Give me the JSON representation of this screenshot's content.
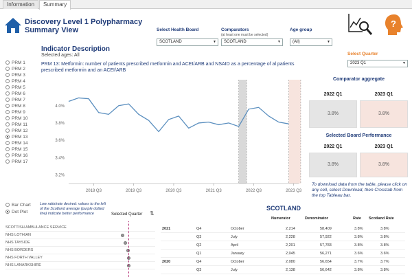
{
  "tabs": [
    {
      "label": "Information",
      "active": false
    },
    {
      "label": "Summary",
      "active": true
    }
  ],
  "header": {
    "title_line1": "Discovery Level 1 Polypharmacy",
    "title_line2": "Summary View",
    "icons": {
      "home": "home-icon",
      "chart_search": "chart-search-icon",
      "help": "help-head-icon"
    }
  },
  "filters": {
    "health_board": {
      "label": "Select Health Board",
      "value": "SCOTLAND"
    },
    "comparators": {
      "label": "Comparators",
      "sublabel": "(at least one must be selected)",
      "value": "SCOTLAND"
    },
    "age_group": {
      "label": "Age group",
      "value": "(All)"
    },
    "quarter": {
      "label": "Select Quarter",
      "value": "2023 Q1"
    }
  },
  "indicator": {
    "heading": "Indicator Description",
    "sub": "Selected ages: All",
    "description": "PRM 13: Metformin: number of patients prescribed metformin and ACEI/ARB and NSAID as a percentage of al patients prescribed metformin and an ACEI/ARB"
  },
  "prm_list": [
    "PRM 1",
    "PRM 2",
    "PRM 3",
    "PRM 4",
    "PRM 5",
    "PRM 6",
    "PRM 7",
    "PRM 8",
    "PRM 9",
    "PRM 10",
    "PRM 11",
    "PRM 12",
    "PRM 13",
    "PRM 14",
    "PRM 15",
    "PRM 16",
    "PRM 17"
  ],
  "prm_selected": 12,
  "chart_data": {
    "type": "line",
    "x_ticks": [
      "2018 Q3",
      "2019 Q3",
      "2020 Q3",
      "2021 Q3",
      "2022 Q3",
      "2023 Q3"
    ],
    "yticks": [
      "4.0%",
      "3.8%",
      "3.6%",
      "3.4%",
      "3.2%"
    ],
    "ylim": [
      3.1,
      4.3
    ],
    "series": [
      {
        "values": [
          4.05,
          4.09,
          4.08,
          3.92,
          3.9,
          4.0,
          4.02,
          3.9,
          3.83,
          3.7,
          3.84,
          3.88,
          3.74,
          3.8,
          3.81,
          3.78,
          3.8,
          3.76,
          3.96,
          3.98,
          3.88,
          3.81,
          3.79
        ]
      }
    ],
    "highlight_bands": [
      {
        "from_index": 17,
        "to_index": 17.8,
        "color": "#d9d9d9"
      },
      {
        "from_index": 22,
        "to_index": 23.2,
        "color": "#f7e4de"
      }
    ]
  },
  "comparator_aggregate": {
    "heading": "Comparator aggregate",
    "cols": [
      "2022 Q1",
      "2023 Q1"
    ],
    "values": [
      "3.8%",
      "3.8%"
    ]
  },
  "board_performance": {
    "heading": "Selected Board Performance",
    "cols": [
      "2022 Q1",
      "2023 Q1"
    ],
    "values": [
      "3.8%",
      "3.8%"
    ]
  },
  "download_note": "To download data from the table, please click on any cell, select Download, then Crosstab from the top Tableau bar.",
  "plot_toggle": {
    "options": [
      "Bar Chart",
      "Dot Plot"
    ],
    "selected": 1
  },
  "legend_note": "Low ratio/rate desired: values to the left of the Scotland average (purple dotted line) indicate better performance",
  "selected_quarter_label": "Selected Quarter",
  "boards": [
    {
      "name": "SCOTTISH AMBULANCE SERVICE",
      "value": null
    },
    {
      "name": "NHS LOTHIAN",
      "value": 3.6
    },
    {
      "name": "NHS TAYSIDE",
      "value": 3.7
    },
    {
      "name": "NHS BORDERS",
      "value": 3.8
    },
    {
      "name": "NHS FORTH VALLEY",
      "value": 3.82
    },
    {
      "name": "NHS LANARKSHIRE",
      "value": 3.83
    }
  ],
  "table": {
    "title": "SCOTLAND",
    "headers": [
      "Numerator",
      "Denominator",
      "Rate",
      "Scotland Rate"
    ],
    "rows": [
      {
        "year": "2021",
        "q": "Q4",
        "month": "October",
        "num": "2,214",
        "den": "58,409",
        "rate": "3.8%",
        "srate": "3.8%"
      },
      {
        "year": "",
        "q": "Q3",
        "month": "July",
        "num": "2,228",
        "den": "57,922",
        "rate": "3.8%",
        "srate": "3.8%"
      },
      {
        "year": "",
        "q": "Q2",
        "month": "April",
        "num": "2,201",
        "den": "57,783",
        "rate": "3.8%",
        "srate": "3.8%"
      },
      {
        "year": "",
        "q": "Q1",
        "month": "January",
        "num": "2,045",
        "den": "56,271",
        "rate": "3.6%",
        "srate": "3.6%"
      },
      {
        "year": "2020",
        "q": "Q4",
        "month": "October",
        "num": "2,080",
        "den": "56,654",
        "rate": "3.7%",
        "srate": "3.7%"
      },
      {
        "year": "",
        "q": "Q3",
        "month": "July",
        "num": "2,138",
        "den": "56,642",
        "rate": "3.8%",
        "srate": "3.8%"
      }
    ]
  }
}
